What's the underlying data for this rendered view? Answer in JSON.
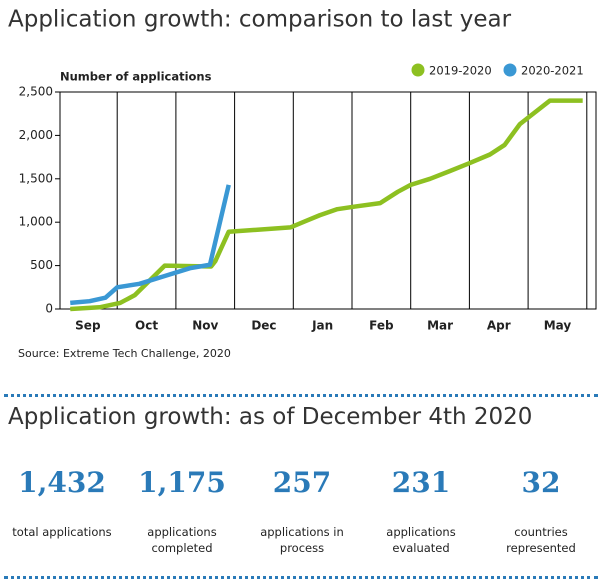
{
  "chart_data": {
    "type": "line",
    "title": "Application growth: comparison to last year",
    "ylabel": "Number of applications",
    "xlim": [
      0,
      9.15
    ],
    "xticks": [
      {
        "value": 0.5,
        "label": "Sep"
      },
      {
        "value": 1.5,
        "label": "Oct"
      },
      {
        "value": 2.5,
        "label": "Nov"
      },
      {
        "value": 3.5,
        "label": "Dec"
      },
      {
        "value": 4.5,
        "label": "Jan"
      },
      {
        "value": 5.5,
        "label": "Feb"
      },
      {
        "value": 6.5,
        "label": "Mar"
      },
      {
        "value": 7.5,
        "label": "Apr"
      },
      {
        "value": 8.5,
        "label": "May"
      }
    ],
    "ylim": [
      0,
      2500
    ],
    "yticks": [
      0,
      {
        "value": 500,
        "label": "500"
      },
      {
        "value": 1000,
        "label": "1,000"
      },
      {
        "value": 1500,
        "label": "1,500"
      },
      {
        "value": 2000,
        "label": "2,000"
      },
      {
        "value": 2500,
        "label": "2,500"
      }
    ],
    "series": [
      {
        "name": "2019-2020",
        "color": "#8dc021",
        "x": [
          0.2,
          0.7,
          1.05,
          1.3,
          1.81,
          2.6,
          2.67,
          2.9,
          3.95,
          4.2,
          4.45,
          4.75,
          5.05,
          5.48,
          5.78,
          6.0,
          6.33,
          6.67,
          7.0,
          7.35,
          7.6,
          7.86,
          8.37,
          8.93
        ],
        "values": [
          0,
          20,
          70,
          160,
          500,
          490,
          550,
          890,
          940,
          1010,
          1080,
          1150,
          1180,
          1220,
          1350,
          1430,
          1500,
          1590,
          1680,
          1780,
          1890,
          2130,
          2400,
          2400
        ]
      },
      {
        "name": "2020-2021",
        "color": "#3a98d4",
        "x": [
          0.2,
          0.53,
          0.8,
          1.0,
          1.38,
          1.81,
          2.24,
          2.58,
          2.9
        ],
        "values": [
          70,
          90,
          130,
          250,
          290,
          380,
          470,
          510,
          1430
        ]
      }
    ],
    "source": "Source: Extreme Tech Challenge, 2020"
  },
  "stats": {
    "title": "Application growth: as of December 4th 2020",
    "items": [
      {
        "value": "1,432",
        "label": "total applications"
      },
      {
        "value": "1,175",
        "label": "applications completed"
      },
      {
        "value": "257",
        "label": "applications in process"
      },
      {
        "value": "231",
        "label": "applications evaluated"
      },
      {
        "value": "32",
        "label": "countries represented"
      }
    ]
  }
}
